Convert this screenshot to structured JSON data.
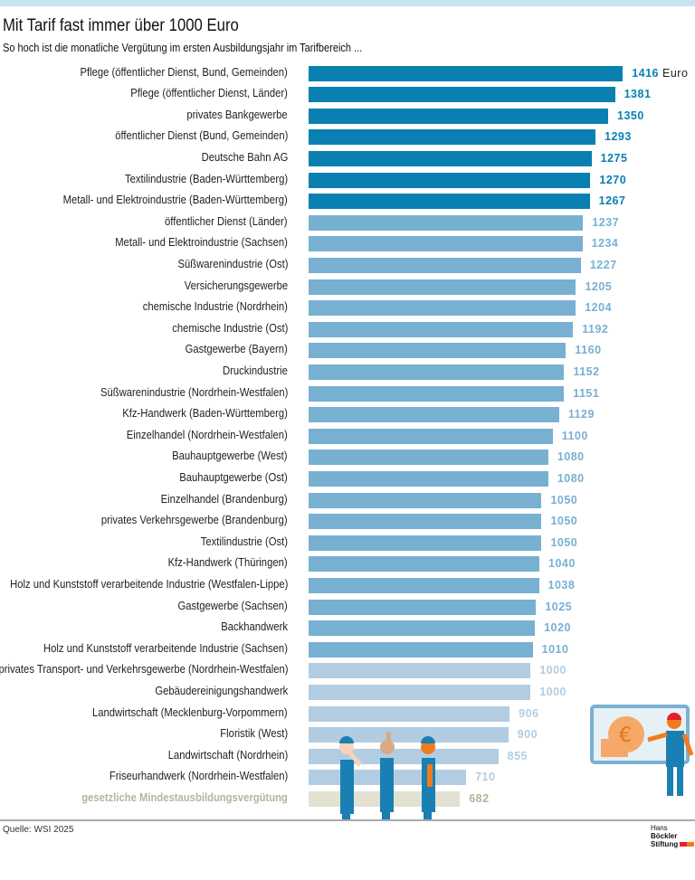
{
  "title": "Mit Tarif fast immer über 1000 Euro",
  "subtitle": "So hoch ist die monatliche Vergütung im ersten Ausbildungsjahr im Tarifbereich ...",
  "source": "Quelle: WSI 2025",
  "logo": {
    "line1a": "Hans ",
    "line1b": "Böckler",
    "line2": "Stiftung"
  },
  "colors": {
    "top": "#0a80b2",
    "mid": "#78b0d2",
    "low": "#b2cde2",
    "minimum": "#e3e1d2",
    "topbar": "#c8e3ee"
  },
  "chart_data": {
    "type": "bar",
    "orientation": "horizontal",
    "unit": "Euro",
    "xlim": [
      0,
      1416
    ],
    "categories": [
      "Pflege (öffentlicher Dienst, Bund, Gemeinden)",
      "Pflege (öffentlicher Dienst, Länder)",
      "privates Bankgewerbe",
      "öffentlicher Dienst (Bund, Gemeinden)",
      "Deutsche Bahn AG",
      "Textilindustrie (Baden-Württemberg)",
      "Metall- und Elektroindustrie (Baden-Württemberg)",
      "öffentlicher Dienst (Länder)",
      "Metall- und Elektroindustrie (Sachsen)",
      "Süßwarenindustrie (Ost)",
      "Versicherungsgewerbe",
      "chemische Industrie (Nordrhein)",
      "chemische Industrie (Ost)",
      "Gastgewerbe (Bayern)",
      "Druckindustrie",
      "Süßwarenindustrie (Nordrhein-Westfalen)",
      "Kfz-Handwerk (Baden-Württemberg)",
      "Einzelhandel (Nordrhein-Westfalen)",
      "Bauhauptgewerbe (West)",
      "Bauhauptgewerbe (Ost)",
      "Einzelhandel (Brandenburg)",
      "privates Verkehrsgewerbe  (Brandenburg)",
      "Textilindustrie (Ost)",
      "Kfz-Handwerk (Thüringen)",
      "Holz und Kunststoff verarbeitende Industrie (Westfalen-Lippe)",
      "Gastgewerbe (Sachsen)",
      "Backhandwerk",
      "Holz und Kunststoff verarbeitende Industrie (Sachsen)",
      "privates Transport- und Verkehrsgewerbe (Nordrhein-Westfalen)",
      "Gebäudereinigungshandwerk",
      "Landwirtschaft (Mecklenburg-Vorpommern)",
      "Floristik (West)",
      "Landwirtschaft (Nordrhein)",
      "Friseurhandwerk (Nordrhein-Westfalen)",
      "gesetzliche Mindestausbildungsvergütung"
    ],
    "values": [
      1416,
      1381,
      1350,
      1293,
      1275,
      1270,
      1267,
      1237,
      1234,
      1227,
      1205,
      1204,
      1192,
      1160,
      1152,
      1151,
      1129,
      1100,
      1080,
      1080,
      1050,
      1050,
      1050,
      1040,
      1038,
      1025,
      1020,
      1010,
      1000,
      1000,
      906,
      900,
      855,
      710,
      682
    ]
  }
}
